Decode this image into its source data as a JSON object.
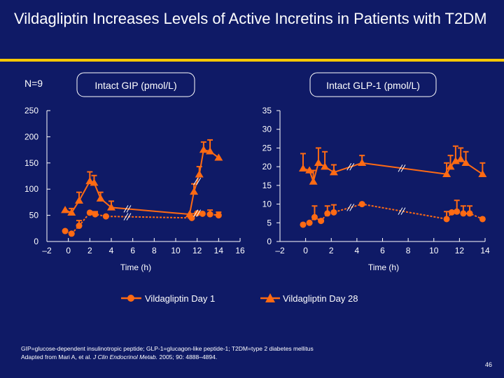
{
  "slide": {
    "title": "Vildagliptin Increases Levels of Active Incretins in Patients with T2DM",
    "n_label": "N=9",
    "footnote_line1": "GIP=glucose-dependent insulinotropic peptide; GLP-1=glucagon-like peptide-1; T2DM=type 2 diabetes mellitus",
    "footnote_line2_prefix": "Adapted from Mari A, et al. ",
    "footnote_journal": "J Clin Endocrinol Metab.",
    "footnote_line2_suffix": " 2005; 90: 4888–4894.",
    "page_number": "46"
  },
  "colors": {
    "background": "#0f1a66",
    "series": "#ff6a13",
    "accent_rule": "#ffc800",
    "axis": "#ffffff"
  },
  "legend": [
    {
      "label": "Vildagliptin Day 1",
      "marker": "circle"
    },
    {
      "label": "Vildagliptin Day 28",
      "marker": "triangle"
    }
  ],
  "chart_data": [
    {
      "type": "line",
      "title": "Intact GIP (pmol/L)",
      "xlabel": "Time (h)",
      "ylabel": "Intact GIP (pmol/L)",
      "xlim": [
        -2,
        16
      ],
      "ylim": [
        0,
        250
      ],
      "x_ticks": [
        -2,
        0,
        2,
        4,
        6,
        8,
        10,
        12,
        14,
        16
      ],
      "x_tick_labels": [
        "–2",
        "0",
        "2",
        "4",
        "6",
        "8",
        "10",
        "12",
        "14",
        "16"
      ],
      "y_ticks": [
        0,
        50,
        100,
        150,
        200,
        250
      ],
      "y_tick_labels": [
        "0",
        "50",
        "100",
        "150",
        "200",
        "250"
      ],
      "axis_breaks": [
        5.5,
        12
      ],
      "series": [
        {
          "name": "Vildagliptin Day 1",
          "marker": "circle",
          "x": [
            -0.3,
            0.3,
            1,
            2,
            2.5,
            3.5,
            11.5,
            12,
            12.5,
            13.2,
            14
          ],
          "y": [
            20,
            15,
            30,
            55,
            52,
            48,
            45,
            54,
            53,
            52,
            50
          ],
          "err": [
            0,
            0,
            10,
            0,
            5,
            0,
            8,
            0,
            0,
            8,
            6
          ]
        },
        {
          "name": "Vildagliptin Day 28",
          "marker": "triangle",
          "x": [
            -0.3,
            0.3,
            1,
            2,
            2.4,
            3,
            4,
            11.3,
            11.7,
            12.2,
            12.6,
            13.2,
            14
          ],
          "y": [
            60,
            55,
            78,
            115,
            112,
            82,
            65,
            52,
            95,
            128,
            175,
            172,
            160
          ],
          "err": [
            0,
            8,
            16,
            18,
            14,
            12,
            12,
            0,
            15,
            15,
            15,
            22,
            0
          ]
        }
      ]
    },
    {
      "type": "line",
      "title": "Intact GLP-1 (pmol/L)",
      "xlabel": "Time (h)",
      "ylabel": "Intact GLP-1 (pmol/L)",
      "xlim": [
        -2,
        14
      ],
      "ylim": [
        0,
        35
      ],
      "x_ticks": [
        -2,
        0,
        2,
        4,
        6,
        8,
        10,
        12,
        14
      ],
      "x_tick_labels": [
        "–2",
        "0",
        "2",
        "4",
        "6",
        "8",
        "10",
        "12",
        "14"
      ],
      "y_ticks": [
        0,
        5,
        10,
        15,
        20,
        25,
        30,
        35
      ],
      "y_tick_labels": [
        "0",
        "5",
        "10",
        "15",
        "20",
        "25",
        "30",
        "35"
      ],
      "axis_breaks": [
        3.5,
        7.5
      ],
      "series": [
        {
          "name": "Vildagliptin Day 1",
          "marker": "circle",
          "x": [
            -0.2,
            0.3,
            0.7,
            1.2,
            1.7,
            2.2,
            4.4,
            11,
            11.4,
            11.8,
            12.3,
            12.8,
            13.8
          ],
          "y": [
            4.5,
            5,
            6.5,
            5.5,
            7.5,
            7.8,
            10,
            6,
            7.8,
            8,
            7.5,
            7.5,
            6
          ],
          "err": [
            0,
            0,
            3,
            0,
            2,
            2,
            0,
            2,
            0,
            3,
            2,
            2,
            0
          ]
        },
        {
          "name": "Vildagliptin Day 28",
          "marker": "triangle",
          "x": [
            -0.2,
            0.3,
            0.6,
            1,
            1.5,
            2.2,
            4.4,
            11,
            11.3,
            11.7,
            12.1,
            12.5,
            13.8
          ],
          "y": [
            19.5,
            19,
            16,
            21,
            20,
            18.5,
            21,
            18,
            20,
            21.5,
            22,
            21,
            18
          ],
          "err": [
            4,
            0,
            3,
            4,
            4,
            2,
            2,
            3,
            3,
            4,
            3,
            3,
            3
          ]
        }
      ]
    }
  ]
}
